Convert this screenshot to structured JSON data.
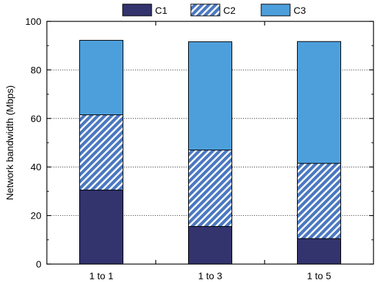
{
  "chart_data": {
    "type": "bar",
    "stacked": true,
    "categories": [
      "1 to 1",
      "1 to 3",
      "1 to 5"
    ],
    "series": [
      {
        "name": "C1",
        "values": [
          30.5,
          15.5,
          10.5
        ],
        "color": "#33336e",
        "pattern": "solid"
      },
      {
        "name": "C2",
        "values": [
          31.0,
          31.5,
          31.0
        ],
        "color": "#4a78c0",
        "pattern": "diagonal-hatch"
      },
      {
        "name": "C3",
        "values": [
          30.7,
          44.6,
          50.2
        ],
        "color": "#4d9fdc",
        "pattern": "solid"
      }
    ],
    "title": "",
    "xlabel": "",
    "ylabel": "Network bandwidth (Mbps)",
    "ylim": [
      0,
      100
    ],
    "yticks": [
      0,
      20,
      40,
      60,
      80,
      100
    ],
    "grid": "horizontal dotted",
    "legend": "top"
  }
}
